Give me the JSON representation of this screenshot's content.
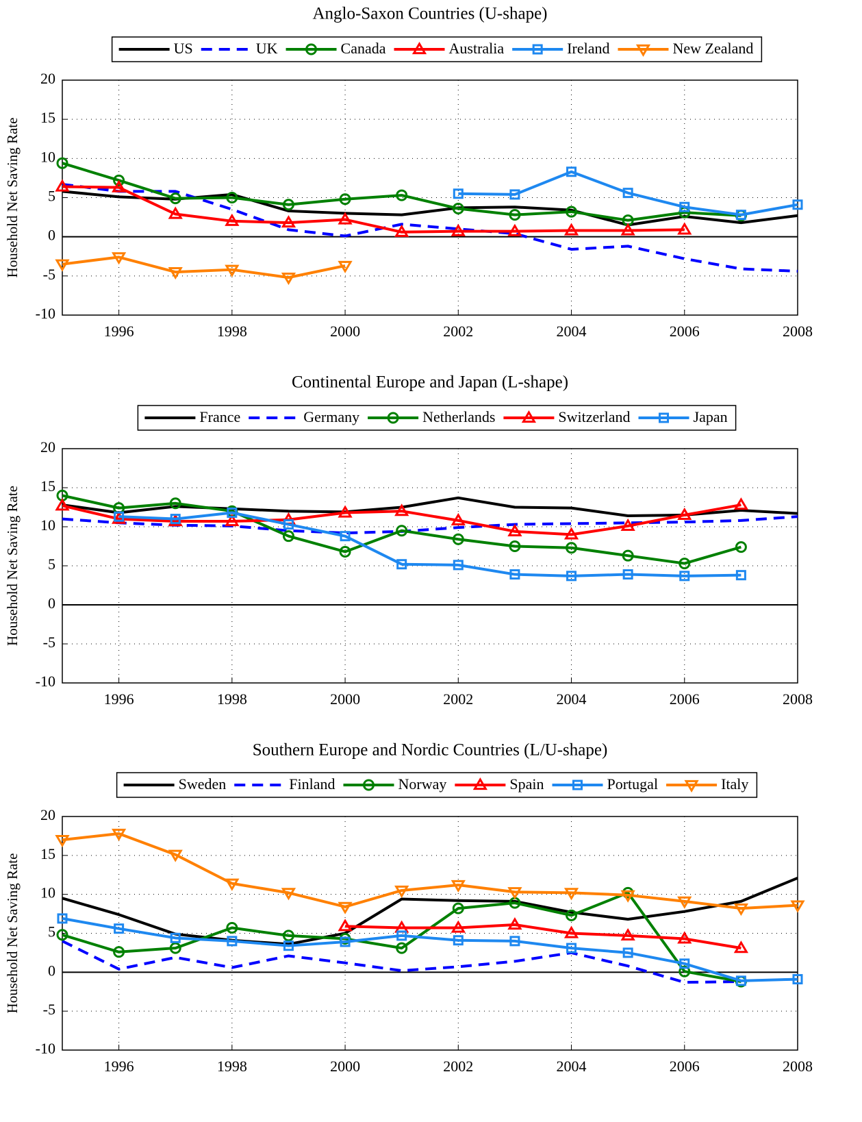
{
  "chart_data": [
    {
      "type": "line",
      "title": "Anglo-Saxon Countries (U-shape)",
      "ylabel": "Household Net Saving Rate",
      "x": [
        1995,
        1996,
        1997,
        1998,
        1999,
        2000,
        2001,
        2002,
        2003,
        2004,
        2005,
        2006,
        2007,
        2008
      ],
      "xlim": [
        1995,
        2008
      ],
      "xticks": [
        1996,
        1998,
        2000,
        2002,
        2004,
        2006,
        2008
      ],
      "ylim": [
        -10,
        20
      ],
      "yticks": [
        -10,
        -5,
        0,
        5,
        10,
        15,
        20
      ],
      "grid": true,
      "series": [
        {
          "name": "US",
          "color": "#000000",
          "dash": false,
          "marker": "none",
          "values": [
            5.8,
            5.1,
            4.8,
            5.4,
            3.3,
            3.0,
            2.8,
            3.7,
            3.8,
            3.4,
            1.5,
            2.6,
            1.8,
            2.7
          ]
        },
        {
          "name": "UK",
          "color": "#0000ff",
          "dash": true,
          "marker": "none",
          "values": [
            6.7,
            5.8,
            5.8,
            3.5,
            0.9,
            0.1,
            1.6,
            1.0,
            0.4,
            -1.6,
            -1.2,
            -2.8,
            -4.1,
            -4.4
          ]
        },
        {
          "name": "Canada",
          "color": "#008000",
          "dash": false,
          "marker": "circle",
          "values": [
            9.4,
            7.2,
            4.9,
            5.0,
            4.1,
            4.8,
            5.3,
            3.6,
            2.8,
            3.2,
            2.1,
            3.1,
            2.7,
            null
          ]
        },
        {
          "name": "Australia",
          "color": "#ff0000",
          "dash": false,
          "marker": "triangle-up",
          "values": [
            6.4,
            6.3,
            2.9,
            2.0,
            1.8,
            2.2,
            0.6,
            0.7,
            0.7,
            0.8,
            0.8,
            0.9,
            null,
            null
          ]
        },
        {
          "name": "Ireland",
          "color": "#1e88f0",
          "dash": false,
          "marker": "square",
          "values": [
            null,
            null,
            null,
            null,
            null,
            null,
            null,
            5.5,
            5.4,
            8.3,
            5.6,
            3.8,
            2.8,
            4.1
          ]
        },
        {
          "name": "New Zealand",
          "color": "#ff8000",
          "dash": false,
          "marker": "triangle-down",
          "values": [
            -3.5,
            -2.6,
            -4.5,
            -4.2,
            -5.2,
            -3.7,
            null,
            null,
            null,
            null,
            null,
            null,
            null,
            null
          ]
        }
      ]
    },
    {
      "type": "line",
      "title": "Continental Europe and Japan (L-shape)",
      "ylabel": "Household Net Saving Rate",
      "x": [
        1995,
        1996,
        1997,
        1998,
        1999,
        2000,
        2001,
        2002,
        2003,
        2004,
        2005,
        2006,
        2007,
        2008
      ],
      "xlim": [
        1995,
        2008
      ],
      "xticks": [
        1996,
        1998,
        2000,
        2002,
        2004,
        2006,
        2008
      ],
      "ylim": [
        -10,
        20
      ],
      "yticks": [
        -10,
        -5,
        0,
        5,
        10,
        15,
        20
      ],
      "grid": true,
      "series": [
        {
          "name": "France",
          "color": "#000000",
          "dash": false,
          "marker": "none",
          "values": [
            12.8,
            11.8,
            12.6,
            12.3,
            12.0,
            11.9,
            12.5,
            13.7,
            12.5,
            12.4,
            11.4,
            11.5,
            12.1,
            11.7
          ]
        },
        {
          "name": "Germany",
          "color": "#0000ff",
          "dash": true,
          "marker": "none",
          "values": [
            11.0,
            10.5,
            10.2,
            10.1,
            9.5,
            9.2,
            9.4,
            9.9,
            10.3,
            10.4,
            10.5,
            10.6,
            10.8,
            11.3
          ]
        },
        {
          "name": "Netherlands",
          "color": "#008000",
          "dash": false,
          "marker": "circle",
          "values": [
            14.0,
            12.4,
            13.0,
            12.0,
            8.8,
            6.8,
            9.5,
            8.4,
            7.5,
            7.3,
            6.3,
            5.3,
            7.4,
            null
          ]
        },
        {
          "name": "Switzerland",
          "color": "#ff0000",
          "dash": false,
          "marker": "triangle-up",
          "values": [
            12.7,
            11.0,
            10.7,
            10.7,
            10.9,
            11.8,
            12.0,
            10.8,
            9.4,
            9.0,
            10.1,
            11.5,
            12.8,
            null
          ]
        },
        {
          "name": "Japan",
          "color": "#1e88f0",
          "dash": false,
          "marker": "square",
          "values": [
            null,
            11.3,
            11.0,
            11.8,
            10.3,
            8.8,
            5.2,
            5.1,
            3.9,
            3.7,
            3.9,
            3.7,
            3.8,
            null
          ]
        }
      ]
    },
    {
      "type": "line",
      "title": "Southern Europe and Nordic Countries (L/U-shape)",
      "ylabel": "Household Net Saving Rate",
      "x": [
        1995,
        1996,
        1997,
        1998,
        1999,
        2000,
        2001,
        2002,
        2003,
        2004,
        2005,
        2006,
        2007,
        2008
      ],
      "xlim": [
        1995,
        2008
      ],
      "xticks": [
        1996,
        1998,
        2000,
        2002,
        2004,
        2006,
        2008
      ],
      "ylim": [
        -10,
        20
      ],
      "yticks": [
        -10,
        -5,
        0,
        5,
        10,
        15,
        20
      ],
      "grid": true,
      "series": [
        {
          "name": "Sweden",
          "color": "#000000",
          "dash": false,
          "marker": "none",
          "values": [
            9.5,
            7.4,
            4.9,
            4.1,
            3.6,
            5.0,
            9.4,
            9.2,
            9.1,
            7.7,
            6.8,
            7.8,
            9.1,
            12.1
          ]
        },
        {
          "name": "Finland",
          "color": "#0000ff",
          "dash": true,
          "marker": "none",
          "values": [
            4.0,
            0.4,
            1.9,
            0.6,
            2.1,
            1.2,
            0.2,
            0.7,
            1.4,
            2.5,
            0.8,
            -1.3,
            -1.2,
            null
          ]
        },
        {
          "name": "Norway",
          "color": "#008000",
          "dash": false,
          "marker": "circle",
          "values": [
            4.8,
            2.6,
            3.1,
            5.7,
            4.7,
            4.3,
            3.1,
            8.2,
            8.9,
            7.3,
            10.2,
            0.1,
            -1.2,
            null
          ]
        },
        {
          "name": "Spain",
          "color": "#ff0000",
          "dash": false,
          "marker": "triangle-up",
          "values": [
            null,
            null,
            null,
            null,
            null,
            5.9,
            5.7,
            5.7,
            6.1,
            5.0,
            4.7,
            4.3,
            3.1,
            null
          ]
        },
        {
          "name": "Portugal",
          "color": "#1e88f0",
          "dash": false,
          "marker": "square",
          "values": [
            6.9,
            5.6,
            4.4,
            4.0,
            3.4,
            3.9,
            4.7,
            4.1,
            4.0,
            3.1,
            2.5,
            1.1,
            -1.1,
            -0.9
          ]
        },
        {
          "name": "Italy",
          "color": "#ff8000",
          "dash": false,
          "marker": "triangle-down",
          "values": [
            17.0,
            17.8,
            15.1,
            11.4,
            10.2,
            8.4,
            10.5,
            11.2,
            10.3,
            10.2,
            9.9,
            9.1,
            8.2,
            8.6
          ]
        }
      ]
    }
  ]
}
